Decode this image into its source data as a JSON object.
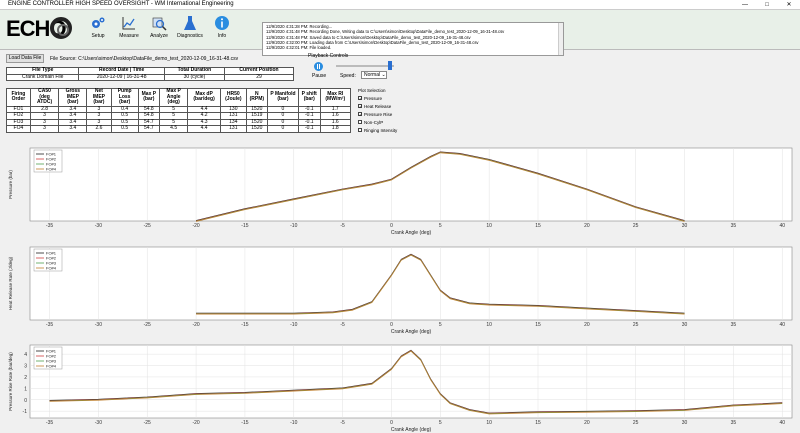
{
  "window": {
    "title": "ENGINE CONTROLLER HIGH SPEED OVERSIGHT - WM International Engineering"
  },
  "toolbar": {
    "logo": "ECHO",
    "buttons": [
      {
        "label": "Setup",
        "icon": "gear-icon"
      },
      {
        "label": "Measure",
        "icon": "chart-icon"
      },
      {
        "label": "Analyze",
        "icon": "magnifier-icon"
      },
      {
        "label": "Diagnostics",
        "icon": "flask-icon"
      },
      {
        "label": "Info",
        "icon": "info-icon"
      }
    ]
  },
  "messages": [
    "12/9/2020 4:31:28 PM: Recording...",
    "12/9/2020 4:31:48 PM: Recording Done, Writing data to C:\\Users\\simon\\Desktop\\DataFile_demo_test_2020-12-09_16-31-48.csv",
    "12/9/2020 4:31:48 PM: Saved data to C:\\Users\\simon\\Desktop\\DataFile_demo_test_2020-12-09_16-31-48.csv",
    "12/9/2020 4:32:00 PM: Loading data from C:\\Users\\simon\\Desktop\\DataFile_demo_test_2020-12-09_16-31-48.csv",
    "12/9/2020 4:32:01 PM: File loaded."
  ],
  "load_button": "Load Data File",
  "file_source": "File Source: C:\\Users\\simon\\Desktop\\DataFile_demo_test_2020-12-09_16-31-48.csv",
  "file_table": {
    "headers": [
      "File Type",
      "Record Date | Time",
      "Total Duration",
      "Current Position"
    ],
    "row": [
      "Crank Domain File",
      "2020-12-09 | 16-31-48",
      "30 (cycle)",
      "29"
    ]
  },
  "playback": {
    "title": "Playback Controls",
    "pause": "Pause",
    "speed_label": "Speed:",
    "speed": "Normal"
  },
  "results_table": {
    "headers": [
      "Firing Order",
      "CA50 (deg ATDC)",
      "Gross IMEP (bar)",
      "Net IMEP (bar)",
      "Pump Loss (bar)",
      "Max P (bar)",
      "Max P Angle (deg)",
      "Max dP (bar/deg)",
      "HR50 (Joule)",
      "N (RPM)",
      "P Manifold (bar)",
      "P shift (bar)",
      "Max RI (MW/m²)"
    ],
    "rows": [
      [
        "FO1",
        "2.8",
        "3.4",
        "3",
        "0.4",
        "54.8",
        "5",
        "4.4",
        "130",
        "1520",
        "0",
        "-0.1",
        "1.7"
      ],
      [
        "FO2",
        "3",
        "3.4",
        "3",
        "0.5",
        "54.8",
        "5",
        "4.2",
        "131",
        "1519",
        "0",
        "-0.1",
        "1.6"
      ],
      [
        "FO3",
        "3",
        "3.4",
        "3",
        "0.5",
        "54.7",
        "5",
        "4.3",
        "134",
        "1520",
        "0",
        "-0.1",
        "1.6"
      ],
      [
        "FO4",
        "3",
        "3.4",
        "2.6",
        "0.5",
        "54.7",
        "4.5",
        "4.4",
        "131",
        "1520",
        "0",
        "-0.1",
        "1.8"
      ]
    ]
  },
  "plot_selection": {
    "title": "Plot Selection",
    "items": [
      {
        "label": "Pressure",
        "checked": true
      },
      {
        "label": "Heat Release",
        "checked": true
      },
      {
        "label": "Pressure Rise",
        "checked": true
      },
      {
        "label": "Non-CylP",
        "checked": false
      },
      {
        "label": "Ringing Intensity",
        "checked": false
      }
    ]
  },
  "chart_data": [
    {
      "type": "line",
      "ylabel": "Pressure (bar)",
      "xlabel": "Crank Angle (deg)",
      "xlim": [
        -37,
        41
      ],
      "xticks": [
        -35,
        -30,
        -25,
        -20,
        -15,
        -10,
        -5,
        0,
        5,
        10,
        15,
        20,
        25,
        30,
        35,
        40
      ],
      "ylim": [
        20,
        57
      ],
      "yticks": [],
      "legend": [
        "FO#1",
        "FO#2",
        "FO#3",
        "FO#4"
      ],
      "colors": [
        "#222222",
        "#d04040",
        "#50a050",
        "#c08030"
      ],
      "x": [
        -20,
        -15,
        -10,
        -5,
        -2,
        0,
        2,
        4,
        5,
        7,
        10,
        15,
        20,
        25,
        30
      ],
      "series": [
        {
          "values": [
            20,
            26,
            31,
            36,
            38.5,
            41,
            47,
            52.5,
            54.8,
            54,
            51,
            44,
            36,
            27,
            20
          ]
        }
      ]
    },
    {
      "type": "line",
      "ylabel": "Heat Release Rate (J/deg)",
      "xlabel": "Crank Angle (deg)",
      "xlim": [
        -37,
        41
      ],
      "xticks": [
        -35,
        -30,
        -25,
        -20,
        -15,
        -10,
        -5,
        0,
        5,
        10,
        15,
        20,
        25,
        30,
        35,
        40
      ],
      "ylim": [
        -5,
        52
      ],
      "yticks": [],
      "legend": [
        "FO#1",
        "FO#2",
        "FO#3",
        "FO#4"
      ],
      "colors": [
        "#222222",
        "#d04040",
        "#50a050",
        "#c08030"
      ],
      "x": [
        -20,
        -15,
        -10,
        -6,
        -4,
        -2,
        0,
        1,
        2,
        3,
        4,
        5,
        6,
        8,
        10,
        15,
        20,
        25,
        30
      ],
      "series": [
        {
          "values": [
            0,
            0,
            0,
            1,
            3,
            9,
            30,
            42,
            46,
            42,
            30,
            18,
            12,
            8,
            7,
            6,
            4,
            2,
            0
          ]
        }
      ]
    },
    {
      "type": "line",
      "ylabel": "Pressure Rise Rate (bar/deg)",
      "xlabel": "Crank Angle (deg)",
      "xlim": [
        -37,
        41
      ],
      "xticks": [
        -35,
        -30,
        -25,
        -20,
        -15,
        -10,
        -5,
        0,
        5,
        10,
        15,
        20,
        25,
        30,
        35,
        40
      ],
      "ylim": [
        -1.6,
        4.8
      ],
      "yticks": [
        -1,
        0,
        1,
        2,
        3,
        4
      ],
      "legend": [
        "FO#1",
        "FO#2",
        "FO#3",
        "FO#4"
      ],
      "colors": [
        "#222222",
        "#d04040",
        "#50a050",
        "#c08030"
      ],
      "x": [
        -35,
        -30,
        -25,
        -20,
        -15,
        -10,
        -5,
        -2,
        0,
        1,
        2,
        3,
        4,
        5,
        6,
        8,
        10,
        15,
        20,
        25,
        30,
        35,
        40
      ],
      "series": [
        {
          "values": [
            -0.1,
            0,
            0.2,
            0.5,
            0.6,
            0.8,
            1.0,
            1.4,
            2.7,
            3.8,
            4.3,
            3.5,
            1.8,
            0.5,
            -0.3,
            -0.9,
            -1.2,
            -1.1,
            -1.05,
            -1.0,
            -0.9,
            -0.5,
            -0.3
          ]
        }
      ]
    }
  ]
}
